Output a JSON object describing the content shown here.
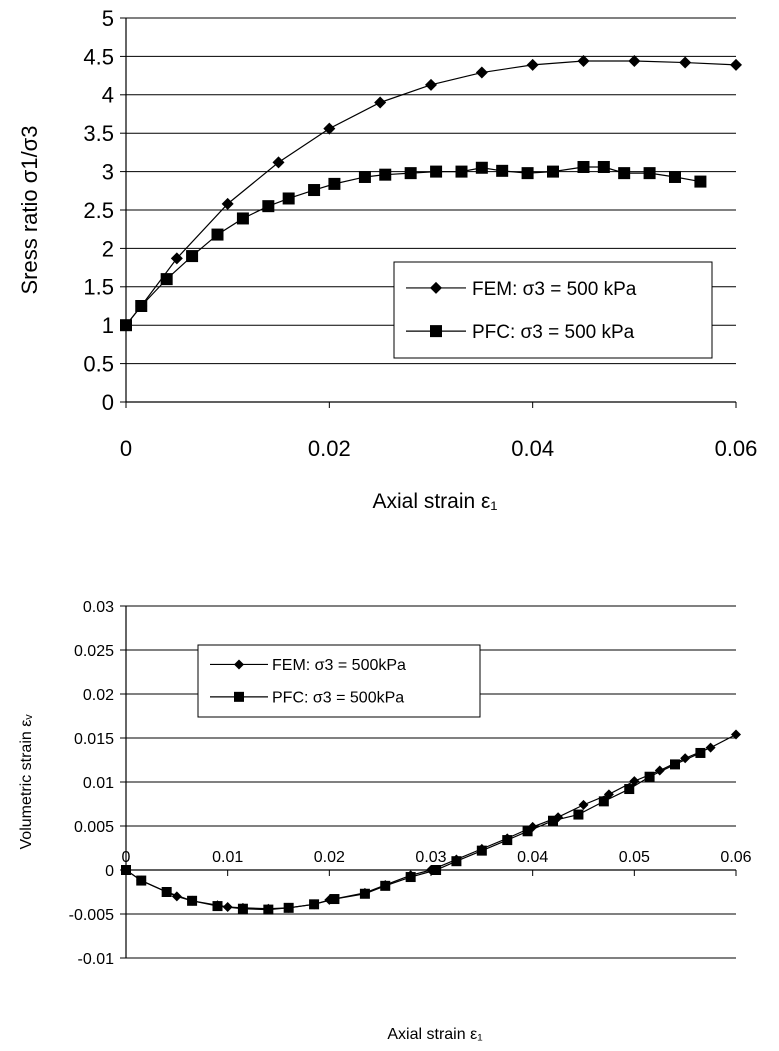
{
  "chart_data": [
    {
      "type": "line",
      "title": "",
      "xlabel": "Axial strain ε₁",
      "ylabel": "Sress ratio σ1/σ3",
      "xlim": [
        0,
        0.06
      ],
      "ylim": [
        0,
        5
      ],
      "x_ticks": [
        "0",
        "0.02",
        "0.04",
        "0.06"
      ],
      "y_ticks": [
        "0",
        "0.5",
        "1",
        "1.5",
        "2",
        "2.5",
        "3",
        "3.5",
        "4",
        "4.5",
        "5"
      ],
      "grid": "horizontal",
      "legend_position": "right",
      "series": [
        {
          "name": "FEM: σ3 = 500 kPa",
          "marker": "diamond",
          "color": "#000000",
          "points": [
            [
              0,
              1.0
            ],
            [
              0.0015,
              1.25
            ],
            [
              0.005,
              1.87
            ],
            [
              0.01,
              2.58
            ],
            [
              0.015,
              3.12
            ],
            [
              0.02,
              3.56
            ],
            [
              0.025,
              3.9
            ],
            [
              0.03,
              4.13
            ],
            [
              0.035,
              4.29
            ],
            [
              0.04,
              4.39
            ],
            [
              0.045,
              4.44
            ],
            [
              0.05,
              4.44
            ],
            [
              0.055,
              4.42
            ],
            [
              0.06,
              4.39
            ]
          ]
        },
        {
          "name": "PFC: σ3 = 500 kPa",
          "marker": "square",
          "color": "#000000",
          "points": [
            [
              0,
              1.0
            ],
            [
              0.0015,
              1.25
            ],
            [
              0.004,
              1.6
            ],
            [
              0.0065,
              1.9
            ],
            [
              0.009,
              2.18
            ],
            [
              0.0115,
              2.39
            ],
            [
              0.014,
              2.55
            ],
            [
              0.016,
              2.65
            ],
            [
              0.0185,
              2.76
            ],
            [
              0.0205,
              2.84
            ],
            [
              0.0235,
              2.93
            ],
            [
              0.0255,
              2.96
            ],
            [
              0.028,
              2.98
            ],
            [
              0.0305,
              3.0
            ],
            [
              0.033,
              3.0
            ],
            [
              0.035,
              3.05
            ],
            [
              0.037,
              3.01
            ],
            [
              0.0395,
              2.98
            ],
            [
              0.042,
              3.0
            ],
            [
              0.045,
              3.06
            ],
            [
              0.047,
              3.06
            ],
            [
              0.049,
              2.98
            ],
            [
              0.0515,
              2.98
            ],
            [
              0.054,
              2.93
            ],
            [
              0.0565,
              2.87
            ]
          ]
        }
      ]
    },
    {
      "type": "line",
      "title": "",
      "xlabel": "Axial strain ε₁",
      "ylabel": "Volumetric strain εᵥ",
      "xlim": [
        0,
        0.06
      ],
      "ylim": [
        -0.01,
        0.03
      ],
      "x_ticks": [
        "0",
        "0.01",
        "0.02",
        "0.03",
        "0.04",
        "0.05",
        "0.06"
      ],
      "y_ticks": [
        "-0.01",
        "-0.005",
        "0",
        "0.005",
        "0.01",
        "0.015",
        "0.02",
        "0.025",
        "0.03"
      ],
      "grid": "horizontal",
      "legend_position": "top-left",
      "series": [
        {
          "name": "FEM: σ3 = 500kPa",
          "marker": "diamond",
          "color": "#000000",
          "points": [
            [
              0,
              0.0
            ],
            [
              0.0015,
              -0.0012
            ],
            [
              0.004,
              -0.0025
            ],
            [
              0.005,
              -0.003
            ],
            [
              0.0065,
              -0.0035
            ],
            [
              0.009,
              -0.004
            ],
            [
              0.01,
              -0.0042
            ],
            [
              0.0115,
              -0.0043
            ],
            [
              0.014,
              -0.0044
            ],
            [
              0.016,
              -0.0043
            ],
            [
              0.0185,
              -0.0039
            ],
            [
              0.02,
              -0.0034
            ],
            [
              0.0235,
              -0.0026
            ],
            [
              0.0255,
              -0.0017
            ],
            [
              0.028,
              -0.0006
            ],
            [
              0.03,
              0.0
            ],
            [
              0.0325,
              0.0012
            ],
            [
              0.035,
              0.0024
            ],
            [
              0.0375,
              0.0036
            ],
            [
              0.04,
              0.0049
            ],
            [
              0.0425,
              0.006
            ],
            [
              0.045,
              0.0074
            ],
            [
              0.0475,
              0.0086
            ],
            [
              0.05,
              0.0101
            ],
            [
              0.0525,
              0.0113
            ],
            [
              0.055,
              0.0127
            ],
            [
              0.0575,
              0.0139
            ],
            [
              0.06,
              0.0154
            ]
          ]
        },
        {
          "name": "PFC: σ3 = 500kPa",
          "marker": "square",
          "color": "#000000",
          "points": [
            [
              0,
              0.0
            ],
            [
              0.0015,
              -0.0012
            ],
            [
              0.004,
              -0.0025
            ],
            [
              0.0065,
              -0.0035
            ],
            [
              0.009,
              -0.0041
            ],
            [
              0.0115,
              -0.0044
            ],
            [
              0.014,
              -0.0045
            ],
            [
              0.016,
              -0.0043
            ],
            [
              0.0185,
              -0.0039
            ],
            [
              0.0205,
              -0.0033
            ],
            [
              0.0235,
              -0.0027
            ],
            [
              0.0255,
              -0.0018
            ],
            [
              0.028,
              -0.0008
            ],
            [
              0.0305,
              0.0
            ],
            [
              0.0325,
              0.001
            ],
            [
              0.035,
              0.0022
            ],
            [
              0.0375,
              0.0034
            ],
            [
              0.0395,
              0.0044
            ],
            [
              0.042,
              0.0056
            ],
            [
              0.0445,
              0.0063
            ],
            [
              0.047,
              0.0078
            ],
            [
              0.0495,
              0.0092
            ],
            [
              0.0515,
              0.0106
            ],
            [
              0.054,
              0.012
            ],
            [
              0.0565,
              0.0133
            ]
          ]
        }
      ]
    }
  ]
}
